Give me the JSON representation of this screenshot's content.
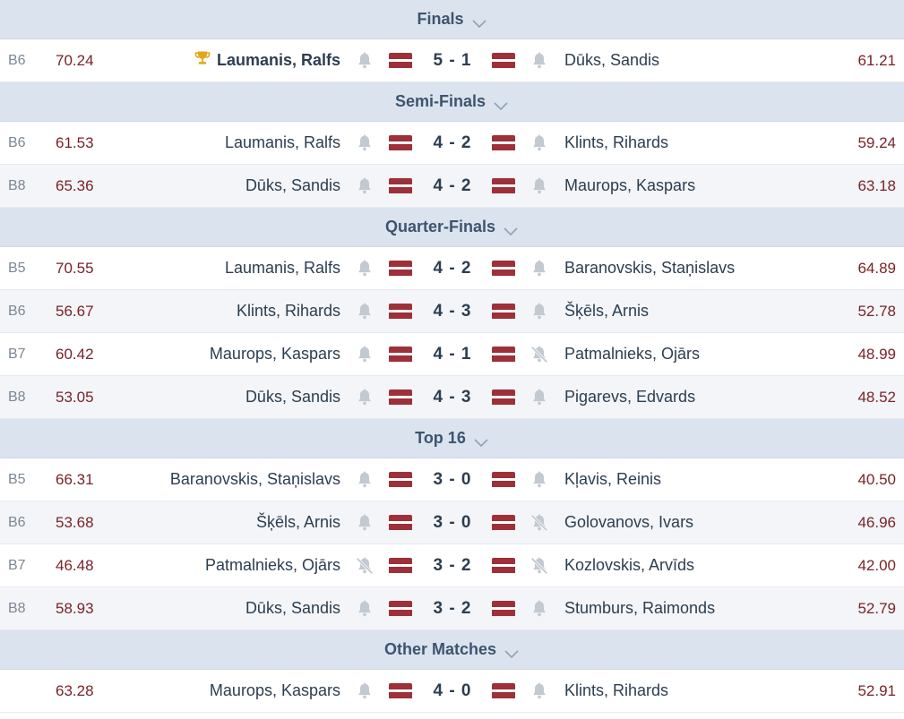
{
  "sections": [
    {
      "title": "Finals",
      "matches": [
        {
          "board": "B6",
          "avg_left": "70.24",
          "left": "Laumanis, Ralfs",
          "winner": "left",
          "left_muted": false,
          "score": "5 - 1",
          "right": "Dūks, Sandis",
          "right_muted": false,
          "avg_right": "61.21"
        }
      ]
    },
    {
      "title": "Semi-Finals",
      "matches": [
        {
          "board": "B6",
          "avg_left": "61.53",
          "left": "Laumanis, Ralfs",
          "winner": "",
          "left_muted": false,
          "score": "4 - 2",
          "right": "Klints, Rihards",
          "right_muted": false,
          "avg_right": "59.24"
        },
        {
          "board": "B8",
          "avg_left": "65.36",
          "left": "Dūks, Sandis",
          "winner": "",
          "left_muted": false,
          "score": "4 - 2",
          "right": "Maurops, Kaspars",
          "right_muted": false,
          "avg_right": "63.18"
        }
      ]
    },
    {
      "title": "Quarter-Finals",
      "matches": [
        {
          "board": "B5",
          "avg_left": "70.55",
          "left": "Laumanis, Ralfs",
          "winner": "",
          "left_muted": false,
          "score": "4 - 2",
          "right": "Baranovskis, Staņislavs",
          "right_muted": false,
          "avg_right": "64.89"
        },
        {
          "board": "B6",
          "avg_left": "56.67",
          "left": "Klints, Rihards",
          "winner": "",
          "left_muted": false,
          "score": "4 - 3",
          "right": "Šķēls, Arnis",
          "right_muted": false,
          "avg_right": "52.78"
        },
        {
          "board": "B7",
          "avg_left": "60.42",
          "left": "Maurops, Kaspars",
          "winner": "",
          "left_muted": false,
          "score": "4 - 1",
          "right": "Patmalnieks, Ojārs",
          "right_muted": true,
          "avg_right": "48.99"
        },
        {
          "board": "B8",
          "avg_left": "53.05",
          "left": "Dūks, Sandis",
          "winner": "",
          "left_muted": false,
          "score": "4 - 3",
          "right": "Pigarevs, Edvards",
          "right_muted": false,
          "avg_right": "48.52"
        }
      ]
    },
    {
      "title": "Top 16",
      "matches": [
        {
          "board": "B5",
          "avg_left": "66.31",
          "left": "Baranovskis, Staņislavs",
          "winner": "",
          "left_muted": false,
          "score": "3 - 0",
          "right": "Kļavis, Reinis",
          "right_muted": false,
          "avg_right": "40.50"
        },
        {
          "board": "B6",
          "avg_left": "53.68",
          "left": "Šķēls, Arnis",
          "winner": "",
          "left_muted": false,
          "score": "3 - 0",
          "right": "Golovanovs, Ivars",
          "right_muted": true,
          "avg_right": "46.96"
        },
        {
          "board": "B7",
          "avg_left": "46.48",
          "left": "Patmalnieks, Ojārs",
          "winner": "",
          "left_muted": true,
          "score": "3 - 2",
          "right": "Kozlovskis, Arvīds",
          "right_muted": true,
          "avg_right": "42.00"
        },
        {
          "board": "B8",
          "avg_left": "58.93",
          "left": "Dūks, Sandis",
          "winner": "",
          "left_muted": false,
          "score": "3 - 2",
          "right": "Stumburs, Raimonds",
          "right_muted": false,
          "avg_right": "52.79"
        }
      ]
    },
    {
      "title": "Other Matches",
      "matches": [
        {
          "board": "",
          "avg_left": "63.28",
          "left": "Maurops, Kaspars",
          "winner": "",
          "left_muted": false,
          "score": "4 - 0",
          "right": "Klints, Rihards",
          "right_muted": false,
          "avg_right": "52.91"
        }
      ]
    }
  ],
  "icons": {
    "bell": "bell-icon",
    "bell_muted": "bell-off-icon",
    "trophy": "trophy-icon",
    "chevron": "chevron-down-icon",
    "flag": "latvia-flag-icon"
  },
  "colors": {
    "header_bg": "#dbe3ee",
    "header_text": "#3d5470",
    "average": "#7a2229",
    "flag_red": "#9e3039",
    "trophy": "#e0a817",
    "bell": "#c3c9d1"
  }
}
